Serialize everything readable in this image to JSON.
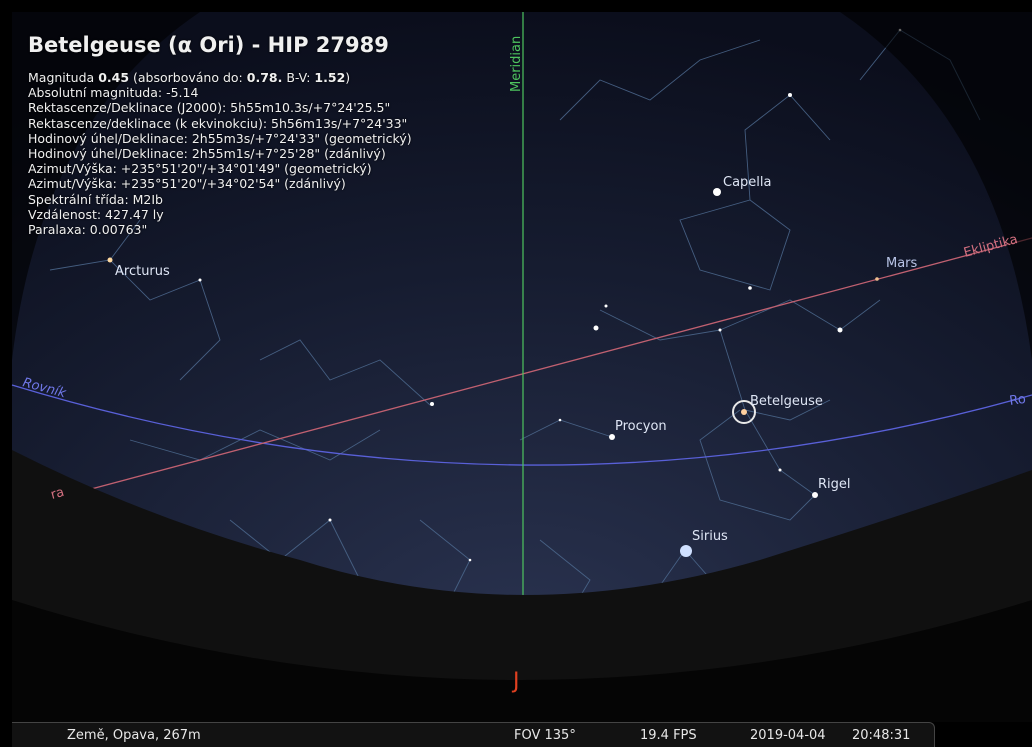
{
  "info": {
    "title": "Betelgeuse (α Ori) - HIP 27989",
    "magnitude_segments": [
      "Magnituda",
      "0.45",
      "(absorbováno do:",
      "0.78.",
      "B-V:",
      "1.52",
      ")"
    ],
    "lines": [
      "Absolutní magnituda: -5.14",
      "Rektascenze/Deklinace (J2000): 5h55m10.3s/+7°24'25.5\"",
      "Rektascenze/deklinace (k ekvinokciu): 5h56m13s/+7°24'33\"",
      "Hodinový úhel/Deklinace: 2h55m3s/+7°24'33\" (geometrický)",
      "Hodinový úhel/Deklinace: 2h55m1s/+7°25'28\" (zdánlivý)",
      "Azimut/Výška: +235°51'20\"/+34°01'49\" (geometrický)",
      "Azimut/Výška: +235°51'20\"/+34°02'54\" (zdánlivý)",
      "Spektrální třída: M2Ib",
      "Vzdálenost: 427.47 ly",
      "Paralaxa: 0.00763\""
    ]
  },
  "sky": {
    "meridian": "Meridian",
    "ecliptic": "Ekliptika",
    "ecliptic_left": "ra",
    "equator_left": "Rovník",
    "equator_right": "Ro",
    "cardinal_south": "J",
    "objects": {
      "arcturus": "Arcturus",
      "capella": "Capella",
      "mars": "Mars",
      "procyon": "Procyon",
      "betelgeuse": "Betelgeuse",
      "rigel": "Rigel",
      "sirius": "Sirius"
    }
  },
  "status_bar": {
    "location": "Země, Opava, 267m",
    "fov": "FOV 135°",
    "fps": "19.4 FPS",
    "date": "2019-04-04",
    "time": "20:48:31"
  }
}
